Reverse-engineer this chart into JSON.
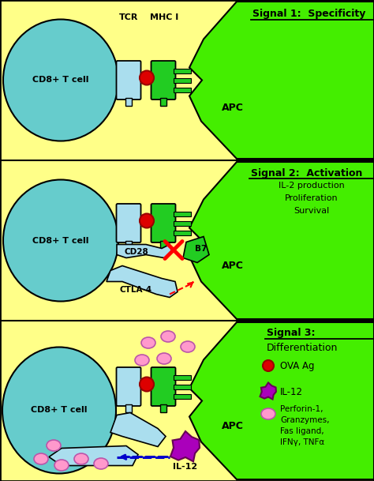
{
  "bg_color": "#FFFF88",
  "teal": "#66CCCC",
  "green_apc": "#44EE00",
  "green_receptor": "#22CC22",
  "light_blue": "#AADEEE",
  "red": "#DD0000",
  "pink": "#FF99CC",
  "purple": "#AA00BB",
  "black": "#000000",
  "blue_arrow": "#0000CC",
  "figsize": [
    4.74,
    6.09
  ],
  "dpi": 100,
  "signal1_text": "Signal 1:  Specificity",
  "signal2_line1": "Signal 2:  Activation",
  "signal2_lines": [
    "IL-2 production",
    "Proliferation",
    "Survival"
  ],
  "signal3_line1": "Signal 3:",
  "signal3_line2": "Differentiation",
  "label_tcr": "TCR",
  "label_mhci": "MHC I",
  "label_apc": "APC",
  "label_cd8": "CD8+ T cell",
  "label_cd28": "CD28",
  "label_ctla4": "CTLA-4",
  "label_b7": "B7",
  "label_il12": "IL-12",
  "legend_ova": "OVA Ag",
  "legend_il12": "IL-12",
  "legend_perforin": [
    "Perforin-1,",
    "Granzymes,",
    "Fas ligand,",
    "IFNγ, TNFα"
  ]
}
